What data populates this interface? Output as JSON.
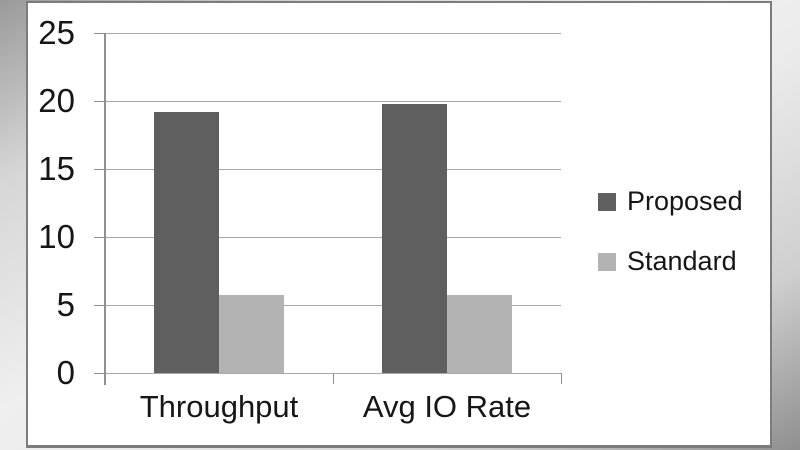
{
  "chart_data": {
    "type": "bar",
    "categories": [
      "Throughput",
      "Avg IO Rate"
    ],
    "series": [
      {
        "name": "Proposed",
        "values": [
          19.2,
          19.8
        ],
        "color": "#5f5f5f"
      },
      {
        "name": "Standard",
        "values": [
          5.7,
          5.7
        ],
        "color": "#b3b3b3"
      }
    ],
    "title": "",
    "xlabel": "",
    "ylabel": "",
    "ylim": [
      0,
      25
    ],
    "y_ticks": [
      0,
      5,
      10,
      15,
      20,
      25
    ],
    "grid": true,
    "legend_position": "right"
  },
  "colors": {
    "plot_background": "#ffffff",
    "frame_border": "#7c7c7c",
    "gridline": "#a8a8a8",
    "axis": "#8f8f8f",
    "text": "#161616"
  }
}
